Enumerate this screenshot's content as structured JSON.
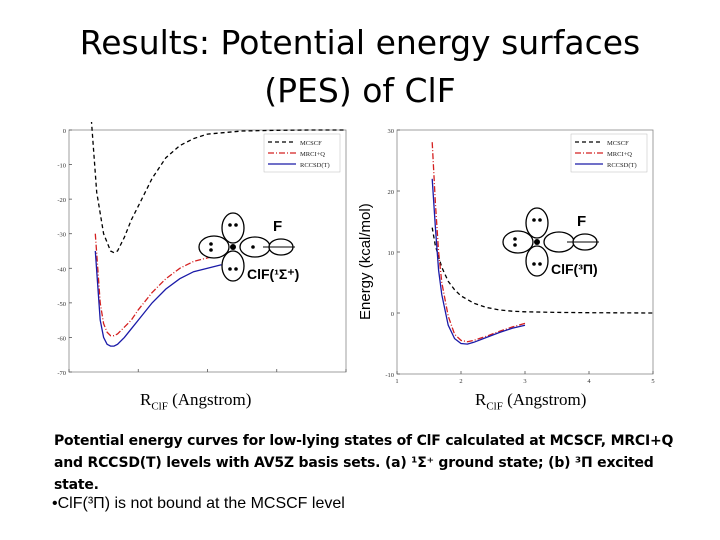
{
  "slide": {
    "title_line1": "Results: Potential energy surfaces",
    "title_line2": "(PES) of ClF",
    "ylabel": "Energy (kcal/mol)",
    "xlabel_prefix": "R",
    "xlabel_sub": "ClF",
    "xlabel_suffix": " (Angstrom)",
    "caption": "Potential energy curves for low-lying states of ClF calculated at MCSCF, MRCI+Q and RCCSD(T) levels with AV5Z basis sets. (a) ¹Σ⁺ ground state; (b) ³Π excited state.",
    "bullet": "•ClF(³Π) is not bound at the MCSCF level"
  },
  "colors": {
    "MCSCF": "#000000",
    "MRCI+Q": "#d42020",
    "RCCSD(T)": "#1a1aa8"
  },
  "chart_data": [
    {
      "type": "line",
      "state_label": "ClF(¹Σ⁺)",
      "atom_label": "F",
      "xlabel": "RClF (Angstrom)",
      "ylabel": "Energy (kcal/mol)",
      "xlim": [
        1.0,
        5.0
      ],
      "ylim": [
        -70,
        0
      ],
      "yticks": [
        "0",
        "-10",
        "-20",
        "-30",
        "-40",
        "-50",
        "-60",
        "-70"
      ],
      "legend": [
        "MCSCF",
        "MRCI+Q",
        "RCCSD(T)"
      ],
      "legend_position": "top-right",
      "series": [
        {
          "name": "MCSCF",
          "style": "dashed",
          "x": [
            1.3,
            1.4,
            1.5,
            1.6,
            1.65,
            1.7,
            1.8,
            1.9,
            2.0,
            2.2,
            2.4,
            2.6,
            2.8,
            3.0,
            3.5,
            4.0,
            4.5,
            5.0
          ],
          "y": [
            9,
            -18,
            -30,
            -35,
            -35.5,
            -35,
            -31,
            -26,
            -22,
            -14,
            -8,
            -4.5,
            -2.5,
            -1.2,
            -0.3,
            -0.1,
            0,
            0
          ]
        },
        {
          "name": "MRCI+Q",
          "style": "dashdot",
          "x": [
            1.38,
            1.45,
            1.5,
            1.55,
            1.6,
            1.65,
            1.7,
            1.8,
            1.9,
            2.0,
            2.2,
            2.4,
            2.6,
            2.8,
            3.0,
            3.2
          ],
          "y": [
            -30,
            -50,
            -56,
            -58.5,
            -59.5,
            -59.5,
            -59,
            -57,
            -55,
            -52,
            -47,
            -43,
            -40,
            -38,
            -37,
            -36
          ]
        },
        {
          "name": "RCCSD(T)",
          "style": "solid",
          "x": [
            1.38,
            1.45,
            1.5,
            1.55,
            1.6,
            1.65,
            1.7,
            1.8,
            1.9,
            2.0,
            2.2,
            2.4,
            2.6,
            2.8,
            3.0,
            3.2
          ],
          "y": [
            -35,
            -55,
            -60,
            -62,
            -62.5,
            -62.5,
            -62,
            -60,
            -57.5,
            -55,
            -50,
            -46,
            -43,
            -41,
            -40,
            -39
          ]
        }
      ]
    },
    {
      "type": "line",
      "state_label": "ClF(³Π)",
      "atom_label": "F",
      "xlabel": "RClF (Angstrom)",
      "ylabel": "Energy (kcal/mol)",
      "xlim": [
        1.0,
        5.0
      ],
      "ylim": [
        -10,
        30
      ],
      "yticks": [
        "30",
        "20",
        "10",
        "0",
        "-10"
      ],
      "xticks": [
        "1",
        "2",
        "3",
        "4",
        "5"
      ],
      "legend": [
        "MCSCF",
        "MRCI+Q",
        "RCCSD(T)"
      ],
      "legend_position": "top-right",
      "series": [
        {
          "name": "MCSCF",
          "style": "dashed",
          "x": [
            1.55,
            1.6,
            1.7,
            1.8,
            1.9,
            2.0,
            2.2,
            2.4,
            2.6,
            2.8,
            3.0,
            3.5,
            4.0,
            5.0
          ],
          "y": [
            14,
            11,
            7.5,
            5.2,
            3.8,
            2.8,
            1.6,
            0.9,
            0.5,
            0.3,
            0.2,
            0.1,
            0.05,
            0
          ]
        },
        {
          "name": "MRCI+Q",
          "style": "dashdot",
          "x": [
            1.55,
            1.6,
            1.65,
            1.7,
            1.8,
            1.9,
            2.0,
            2.1,
            2.2,
            2.4,
            2.6,
            2.8,
            3.0
          ],
          "y": [
            28,
            18,
            10,
            5,
            -0.5,
            -3.5,
            -4.5,
            -4.7,
            -4.5,
            -3.8,
            -3.0,
            -2.3,
            -1.7
          ]
        },
        {
          "name": "RCCSD(T)",
          "style": "solid",
          "x": [
            1.55,
            1.6,
            1.65,
            1.7,
            1.8,
            1.9,
            2.0,
            2.1,
            2.2,
            2.4,
            2.6,
            2.8,
            3.0
          ],
          "y": [
            22,
            14,
            7,
            3,
            -2,
            -4.2,
            -5,
            -5.1,
            -4.8,
            -4.0,
            -3.2,
            -2.5,
            -2.0
          ]
        }
      ]
    }
  ]
}
